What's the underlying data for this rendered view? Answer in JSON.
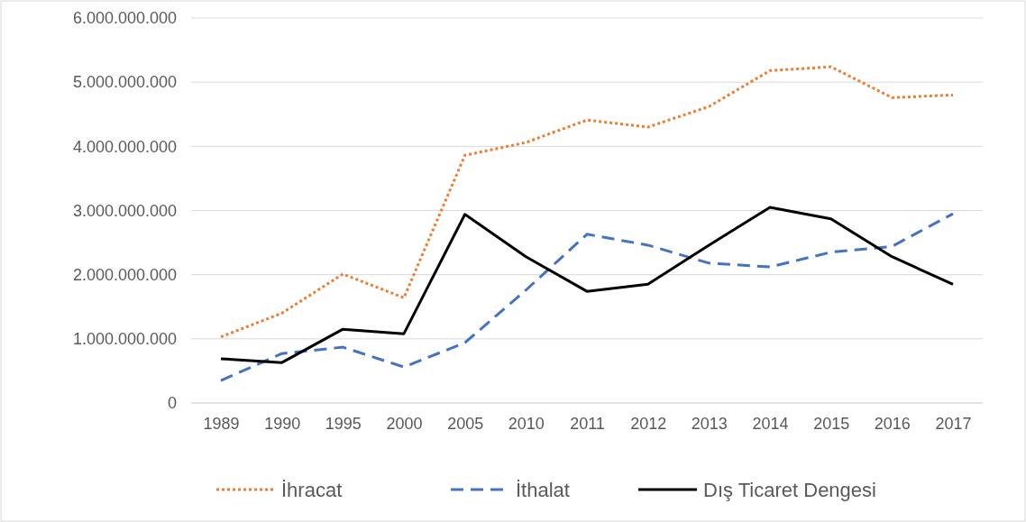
{
  "chart_data": {
    "type": "line",
    "categories": [
      "1989",
      "1990",
      "1995",
      "2000",
      "2005",
      "2010",
      "2011",
      "2012",
      "2013",
      "2014",
      "2015",
      "2016",
      "2017"
    ],
    "series": [
      {
        "name": "İhracat",
        "color": "#ed7d31",
        "line_style": "dotted",
        "values": [
          1030000000,
          1400000000,
          2010000000,
          1640000000,
          3860000000,
          4060000000,
          4410000000,
          4300000000,
          4620000000,
          5180000000,
          5240000000,
          4760000000,
          4800000000
        ]
      },
      {
        "name": "İthalat",
        "color": "#4472c4",
        "line_style": "dashed",
        "values": [
          350000000,
          770000000,
          870000000,
          560000000,
          940000000,
          1760000000,
          2630000000,
          2460000000,
          2180000000,
          2120000000,
          2350000000,
          2440000000,
          2950000000
        ]
      },
      {
        "name": "Dış Ticaret Dengesi",
        "color": "#000000",
        "line_style": "solid",
        "values": [
          690000000,
          630000000,
          1150000000,
          1080000000,
          2940000000,
          2280000000,
          1740000000,
          1850000000,
          2460000000,
          3050000000,
          2870000000,
          2280000000,
          1850000000
        ]
      }
    ],
    "ylim": [
      0,
      6000000000
    ],
    "yticks": [
      0,
      {
        "value": 1000000000,
        "label": "1.000.000.000"
      },
      {
        "value": 2000000000,
        "label": "2.000.000.000"
      },
      {
        "value": 3000000000,
        "label": "3.000.000.000"
      },
      {
        "value": 4000000000,
        "label": "4.000.000.000"
      },
      {
        "value": 5000000000,
        "label": "5.000.000.000"
      },
      {
        "value": 6000000000,
        "label": "6.000.000.000"
      }
    ],
    "grid": "y",
    "legend": "bottom",
    "marker": "none"
  }
}
